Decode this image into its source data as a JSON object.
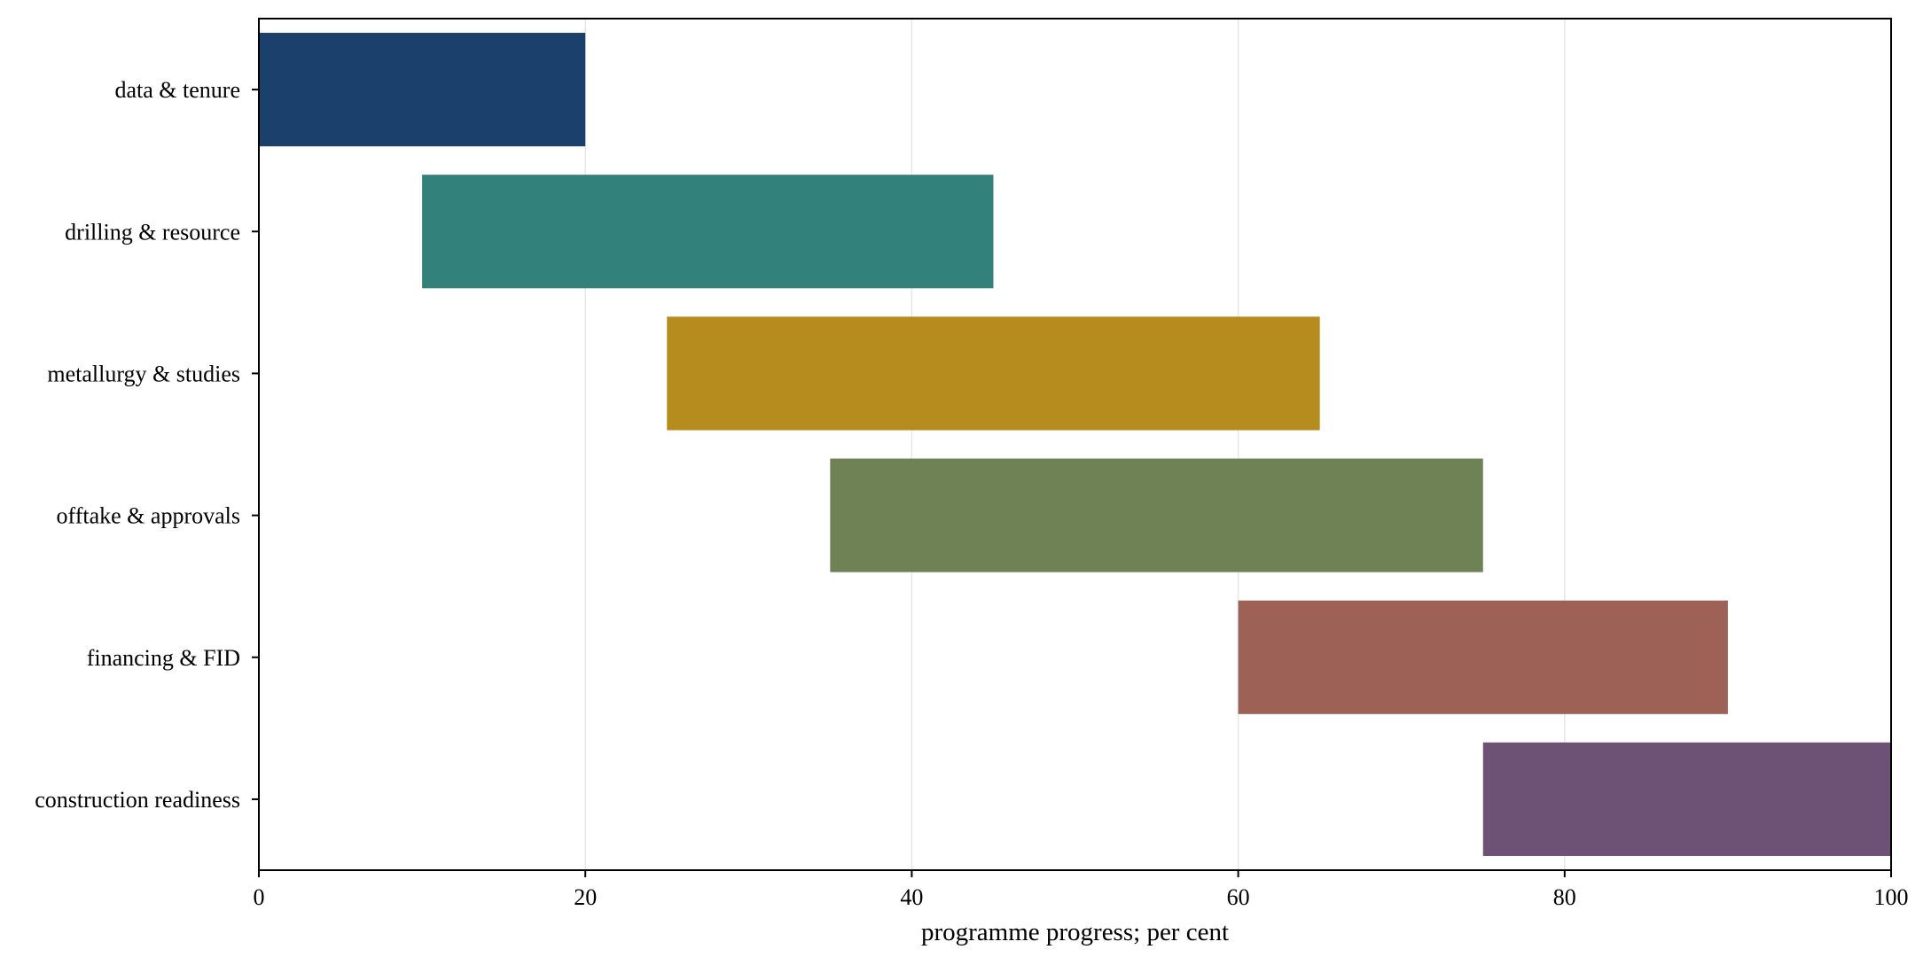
{
  "chart_data": {
    "type": "bar",
    "orientation": "horizontal-floating",
    "title": "",
    "xlabel": "programme progress; per cent",
    "ylabel": "",
    "xlim": [
      0,
      100
    ],
    "xticks": [
      0,
      20,
      40,
      60,
      80,
      100
    ],
    "grid": "x",
    "legend": "none",
    "categories": [
      "data & tenure",
      "drilling & resource",
      "metallurgy & studies",
      "offtake & approvals",
      "financing & FID",
      "construction readiness"
    ],
    "start": [
      0,
      10,
      25,
      35,
      60,
      75
    ],
    "end": [
      20,
      45,
      65,
      75,
      90,
      100
    ],
    "colors": [
      "#173c69",
      "#2e8078",
      "#b58a19",
      "#6b7f52",
      "#9b5e52",
      "#6b4f72"
    ]
  }
}
